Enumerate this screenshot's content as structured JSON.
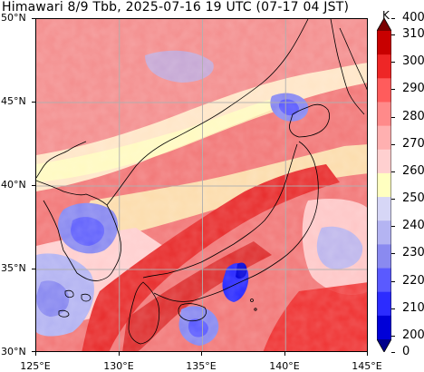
{
  "title": "Himawari 8/9 Tbb, 2025-07-16 19 UTC (07-17 04 JST)",
  "map": {
    "lat_ticks": [
      "50°N",
      "45°N",
      "40°N",
      "35°N",
      "30°N"
    ],
    "lon_ticks": [
      "125°E",
      "130°E",
      "135°E",
      "140°E",
      "145°E"
    ],
    "lat_range": [
      30,
      50
    ],
    "lon_range": [
      125,
      145
    ],
    "grid": true,
    "coastline_color": "#000000",
    "gridline_color": "#b0b0b0"
  },
  "colorbar": {
    "unit": "K",
    "labels": [
      "400",
      "310",
      "300",
      "290",
      "280",
      "270",
      "260",
      "250",
      "240",
      "230",
      "220",
      "210",
      "200",
      "0"
    ],
    "colors": [
      "#00008b",
      "#0000d8",
      "#2c2cff",
      "#5a5aff",
      "#8a8af0",
      "#b4b4f2",
      "#d6d6f6",
      "#ffffc0",
      "#ffd0d0",
      "#ffb0b0",
      "#ff8a8a",
      "#ff5c5c",
      "#ee2626",
      "#c80000",
      "#7a0000"
    ],
    "extend": "both"
  }
}
